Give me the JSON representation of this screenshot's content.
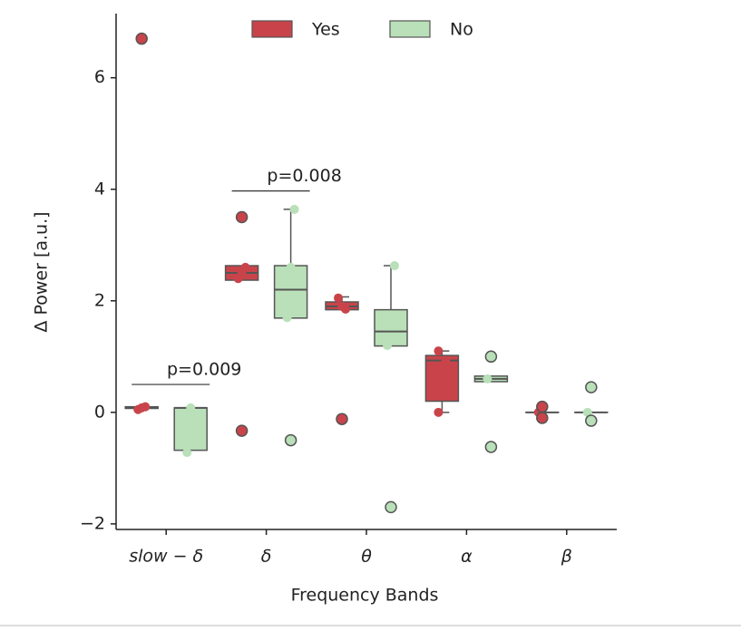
{
  "chart_data": {
    "type": "box",
    "xlabel": "Frequency Bands",
    "ylabel": "Δ Power [a.u.]",
    "categories": [
      "slow − δ",
      "δ",
      "θ",
      "α",
      "β"
    ],
    "ylim": [
      -2.1,
      7.15
    ],
    "yticks": [
      {
        "value": -2,
        "label": "−2"
      },
      0,
      2,
      4,
      6
    ],
    "legend": "top",
    "edge_color": "#555555",
    "series": [
      {
        "name": "Yes",
        "color": "#c9444a",
        "boxes": [
          {
            "min": 0.07,
            "q1": 0.07,
            "median": 0.08,
            "q3": 0.1,
            "max": 0.1,
            "outliers": [
              6.7
            ],
            "points": [
              0.05,
              0.08,
              0.1
            ]
          },
          {
            "min": 2.37,
            "q1": 2.37,
            "median": 2.5,
            "q3": 2.63,
            "max": 2.63,
            "outliers": [
              3.5,
              -0.33
            ],
            "points": [
              2.4,
              2.5,
              2.6
            ]
          },
          {
            "min": 1.84,
            "q1": 1.84,
            "median": 1.9,
            "q3": 1.98,
            "max": 2.07,
            "outliers": [
              -0.12
            ],
            "points": [
              2.05,
              1.9,
              1.85
            ]
          },
          {
            "min": 0,
            "q1": 0.2,
            "median": 0.93,
            "q3": 1.02,
            "max": 1.1,
            "outliers": [],
            "points": [
              0,
              0.5,
              0.9,
              1.1
            ]
          },
          {
            "min": 0,
            "q1": 0,
            "median": 0,
            "q3": 0,
            "max": 0,
            "outliers": [
              0.1,
              -0.1
            ],
            "points": [
              0
            ]
          }
        ]
      },
      {
        "name": "No",
        "color": "#b9e0b8",
        "boxes": [
          {
            "min": -0.68,
            "q1": -0.68,
            "median": 0.08,
            "q3": 0.08,
            "max": 0.08,
            "outliers": [],
            "points": [
              -0.72,
              0.08
            ]
          },
          {
            "min": 1.69,
            "q1": 1.69,
            "median": 2.2,
            "q3": 2.63,
            "max": 3.64,
            "outliers": [
              -0.5
            ],
            "points": [
              1.7,
              2.6,
              3.64
            ]
          },
          {
            "min": 1.19,
            "q1": 1.19,
            "median": 1.45,
            "q3": 1.84,
            "max": 2.63,
            "outliers": [
              -1.7
            ],
            "points": [
              1.2,
              1.7,
              2.63
            ]
          },
          {
            "min": 0.55,
            "q1": 0.55,
            "median": 0.6,
            "q3": 0.65,
            "max": 0.65,
            "outliers": [
              1.0,
              -0.62
            ],
            "points": [
              0.6
            ]
          },
          {
            "min": 0,
            "q1": 0,
            "median": 0,
            "q3": 0,
            "max": 0,
            "outliers": [
              0.45,
              -0.15
            ],
            "points": [
              0
            ]
          }
        ]
      }
    ],
    "annotations": [
      {
        "text": "p=0.009",
        "category": 0,
        "y": 0.5
      },
      {
        "text": "p=0.008",
        "category": 1,
        "y": 3.97
      }
    ]
  }
}
